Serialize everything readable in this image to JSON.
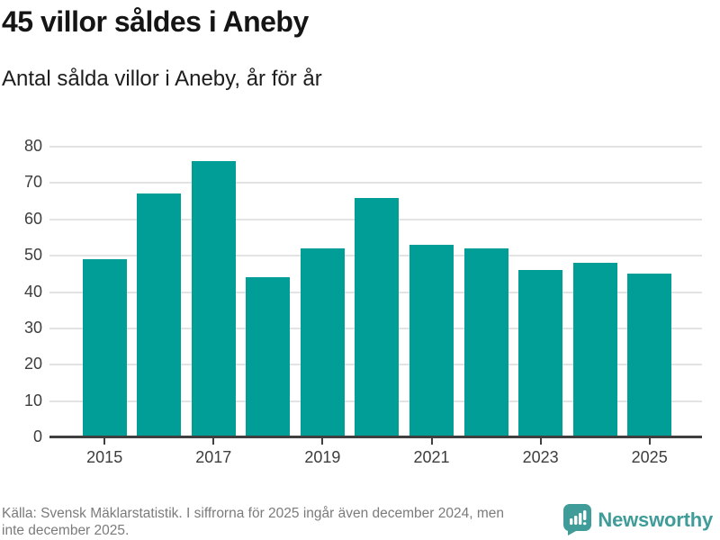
{
  "header": {
    "title": "45 villor såldes i Aneby",
    "subtitle": "Antal sålda villor i Aneby, år för år"
  },
  "chart_data": {
    "type": "bar",
    "title": "45 villor såldes i Aneby",
    "subtitle": "Antal sålda villor i Aneby, år för år",
    "categories": [
      "2015",
      "2016",
      "2017",
      "2018",
      "2019",
      "2020",
      "2021",
      "2022",
      "2023",
      "2024",
      "2025"
    ],
    "values": [
      49,
      67,
      76,
      44,
      52,
      66,
      53,
      52,
      46,
      48,
      45
    ],
    "xlabel": "",
    "ylabel": "",
    "ylim": [
      0,
      80
    ],
    "yticks": [
      0,
      10,
      20,
      30,
      40,
      50,
      60,
      70,
      80
    ],
    "xtick_labels": [
      "2015",
      "2017",
      "2019",
      "2021",
      "2023",
      "2025"
    ],
    "xtick_indices": [
      0,
      2,
      4,
      6,
      8,
      10
    ],
    "grid": true,
    "legend": "none"
  },
  "footer": {
    "source_lines": [
      "Källa: Svensk Mäklarstatistik. I siffrorna för 2025 ingår även december 2024, men",
      "inte december 2025."
    ],
    "brand": "Newsworthy"
  },
  "colors": {
    "bar": "#009e97",
    "brand": "#3f9c98",
    "grid": "#e3e3e3",
    "axis": "#3f3f3f",
    "tick_label": "#3d3d3d",
    "source_text": "#7b7b7b"
  }
}
